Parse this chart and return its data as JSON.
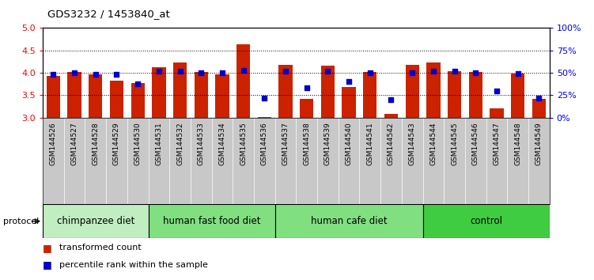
{
  "title": "GDS3232 / 1453840_at",
  "categories": [
    "GSM144526",
    "GSM144527",
    "GSM144528",
    "GSM144529",
    "GSM144530",
    "GSM144531",
    "GSM144532",
    "GSM144533",
    "GSM144534",
    "GSM144535",
    "GSM144536",
    "GSM144537",
    "GSM144538",
    "GSM144539",
    "GSM144540",
    "GSM144541",
    "GSM144542",
    "GSM144543",
    "GSM144544",
    "GSM144545",
    "GSM144546",
    "GSM144547",
    "GSM144548",
    "GSM144549"
  ],
  "bar_values": [
    3.93,
    4.01,
    3.97,
    3.82,
    3.77,
    4.13,
    4.23,
    4.01,
    3.97,
    4.63,
    3.02,
    4.17,
    3.42,
    4.16,
    3.69,
    4.01,
    3.09,
    4.17,
    4.23,
    4.04,
    4.01,
    3.2,
    3.98,
    3.42
  ],
  "percentile_values": [
    48,
    50,
    48,
    48,
    38,
    52,
    52,
    50,
    50,
    53,
    22,
    52,
    33,
    52,
    40,
    50,
    20,
    50,
    52,
    52,
    50,
    30,
    49,
    22
  ],
  "ylim_left": [
    3.0,
    5.0
  ],
  "ylim_right": [
    0,
    100
  ],
  "bar_color": "#cc2200",
  "dot_color": "#0000cc",
  "group_labels": [
    "chimpanzee diet",
    "human fast food diet",
    "human cafe diet",
    "control"
  ],
  "group_starts": [
    0,
    5,
    11,
    18
  ],
  "group_ends": [
    5,
    11,
    18,
    24
  ],
  "group_colors": [
    "#c0eec0",
    "#80e080",
    "#80e080",
    "#40cc40"
  ],
  "xtick_bg": "#c8c8c8",
  "protocol_label": "protocol",
  "legend_bar": "transformed count",
  "legend_dot": "percentile rank within the sample"
}
